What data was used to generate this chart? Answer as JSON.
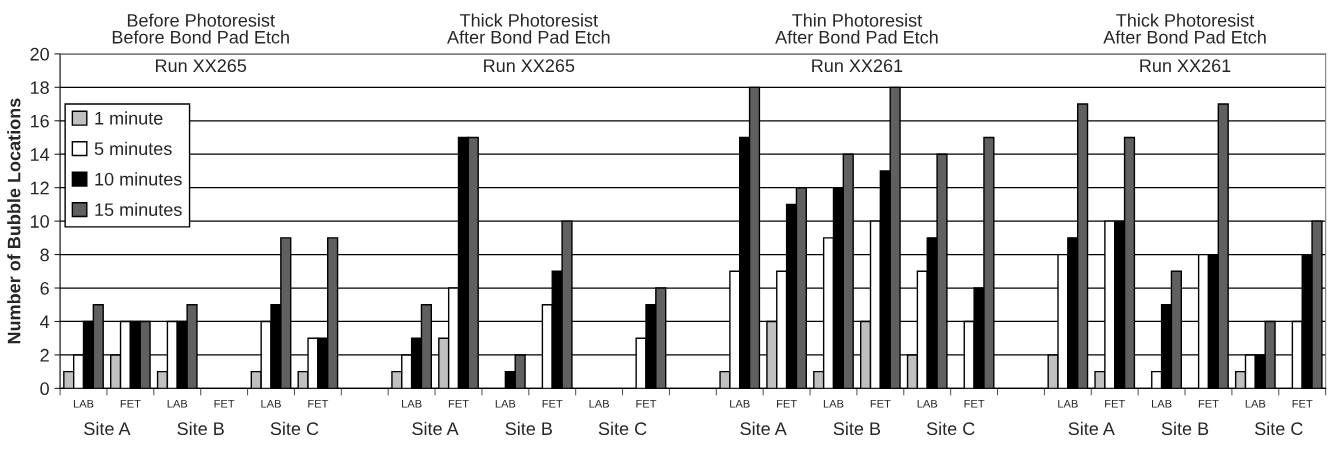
{
  "chart_data": {
    "type": "bar",
    "ylabel": "Number of Bubble Locations",
    "categories": [
      "LAB",
      "FET",
      "LAB",
      "FET",
      "LAB",
      "FET",
      null,
      "LAB",
      "FET",
      "LAB",
      "FET",
      "LAB",
      "FET",
      null,
      "LAB",
      "FET",
      "LAB",
      "FET",
      "LAB",
      "FET",
      null,
      "LAB",
      "FET",
      "LAB",
      "FET",
      "LAB",
      "FET"
    ],
    "series": [
      {
        "name": "1 minute",
        "color": "#c0c0c0",
        "values": [
          1,
          2,
          1,
          null,
          1,
          1,
          null,
          1,
          3,
          null,
          null,
          null,
          null,
          null,
          1,
          4,
          1,
          4,
          2,
          null,
          null,
          2,
          1,
          null,
          null,
          1,
          null
        ]
      },
      {
        "name": "5 minutes",
        "color": "#ffffff",
        "values": [
          2,
          4,
          4,
          null,
          4,
          3,
          null,
          2,
          6,
          null,
          5,
          null,
          3,
          null,
          7,
          7,
          9,
          10,
          7,
          4,
          null,
          8,
          10,
          1,
          8,
          2,
          4
        ]
      },
      {
        "name": "10 minutes",
        "color": "#000000",
        "values": [
          4,
          4,
          4,
          null,
          5,
          3,
          null,
          3,
          15,
          1,
          7,
          null,
          5,
          null,
          15,
          11,
          12,
          13,
          9,
          6,
          null,
          9,
          10,
          5,
          8,
          2,
          8
        ]
      },
      {
        "name": "15 minutes",
        "color": "#606060",
        "values": [
          5,
          4,
          5,
          null,
          9,
          9,
          null,
          5,
          15,
          2,
          10,
          null,
          6,
          null,
          18,
          12,
          14,
          18,
          14,
          15,
          null,
          17,
          15,
          7,
          17,
          4,
          10
        ]
      }
    ],
    "ylim": [
      0,
      20
    ],
    "yticks": [
      0,
      2,
      4,
      6,
      8,
      10,
      12,
      14,
      16,
      18,
      20
    ],
    "grid": "y",
    "legend": "top left",
    "annotations": [
      "Before Photoresist\nBefore Bond Pad Etch",
      "Run XX265",
      "Site A",
      "Site B",
      "Site C",
      "Thick Photoresist\nAfter Bond Pad Etch",
      "Run XX265",
      "Site A",
      "Site B",
      "Site C",
      "Thin Photoresist\nAfter Bond Pad Etch",
      "Run XX261",
      "Site A",
      "Site B",
      "Site C",
      "Thick Photoresist\nAfter Bond Pad Etch",
      "Run XX261",
      "Site A",
      "Site B",
      "Site C"
    ]
  }
}
